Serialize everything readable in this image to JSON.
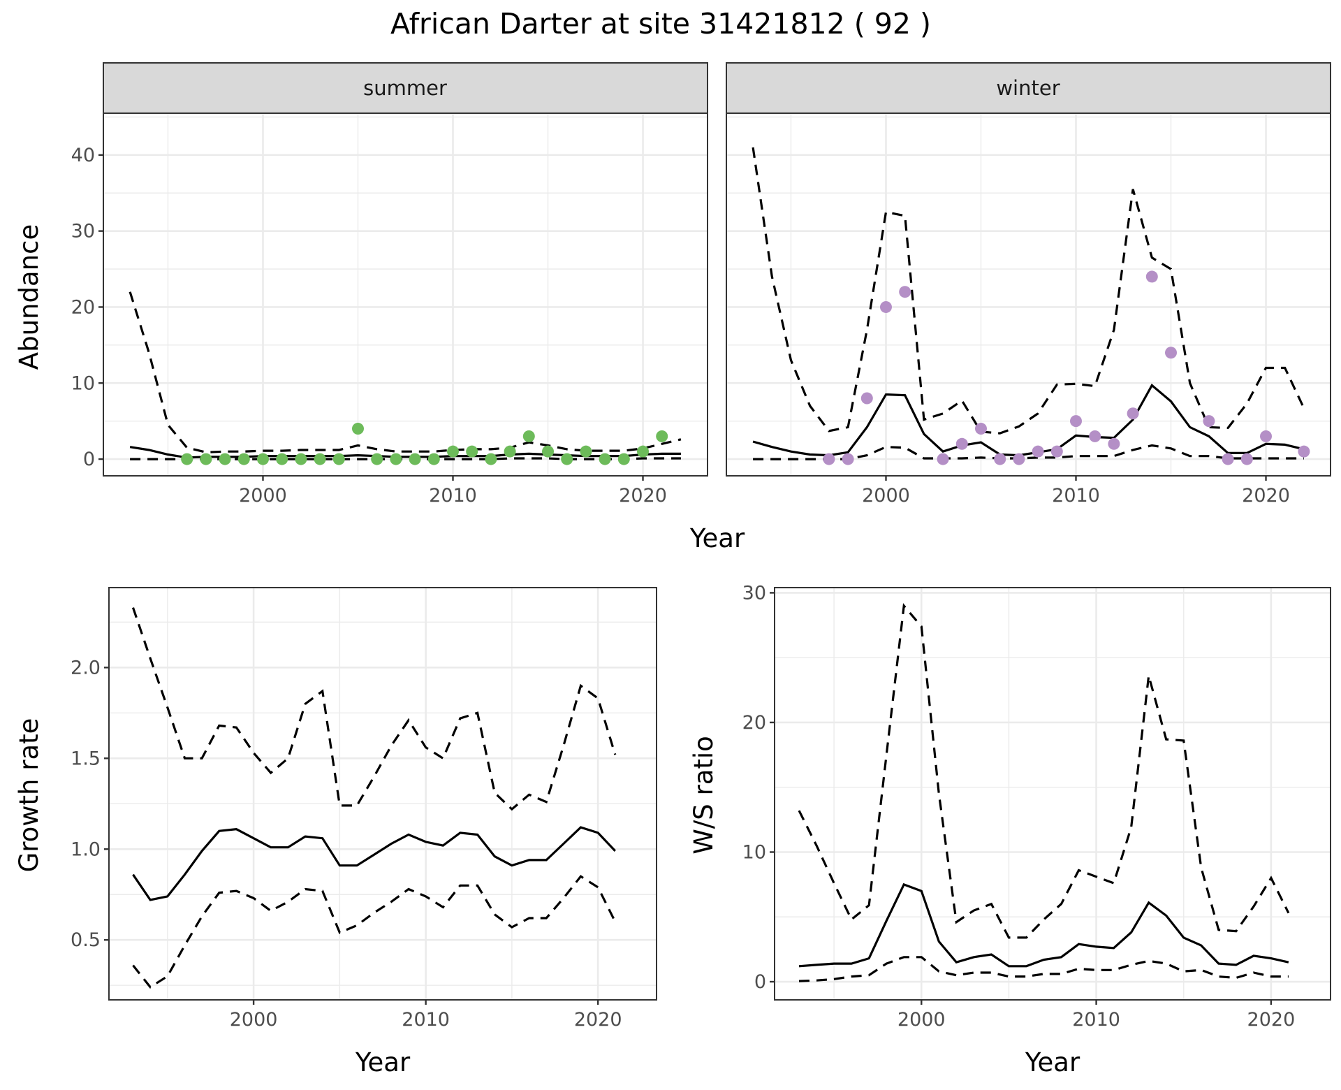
{
  "title": "African Darter at site 31421812 ( 92 )",
  "colors": {
    "summer_points": "#6dbb5a",
    "winter_points": "#b48fc6",
    "lines": "#000000",
    "strip_fill": "#d9d9d9",
    "grid": "#ebebeb",
    "panel_border": "#333333"
  },
  "chart_data": [
    {
      "type": "line",
      "facet": "summer",
      "strip_label": "summer",
      "xlabel": "Year",
      "ylabel": "Abundance",
      "xlim": [
        1991.6,
        2023.4
      ],
      "ylim": [
        -2.2,
        45.5
      ],
      "xticks": [
        2000,
        2010,
        2020
      ],
      "xtick_labels": [
        "2000",
        "2010",
        "2020"
      ],
      "yticks": [
        0,
        10,
        20,
        30,
        40
      ],
      "ytick_labels": [
        "0",
        "10",
        "20",
        "30",
        "40"
      ],
      "grid": true,
      "x": [
        1993,
        1994,
        1995,
        1996,
        1997,
        1998,
        1999,
        2000,
        2001,
        2002,
        2003,
        2004,
        2005,
        2006,
        2007,
        2008,
        2009,
        2010,
        2011,
        2012,
        2013,
        2014,
        2015,
        2016,
        2017,
        2018,
        2019,
        2020,
        2021,
        2022
      ],
      "series": [
        {
          "name": "median",
          "style": "solid",
          "values": [
            1.6,
            1.2,
            0.6,
            0.2,
            0.3,
            0.3,
            0.3,
            0.4,
            0.4,
            0.4,
            0.4,
            0.4,
            0.5,
            0.4,
            0.3,
            0.3,
            0.3,
            0.4,
            0.4,
            0.4,
            0.6,
            0.7,
            0.6,
            0.5,
            0.4,
            0.4,
            0.4,
            0.6,
            0.7,
            0.7
          ]
        },
        {
          "name": "upper",
          "style": "dashed",
          "values": [
            22,
            14,
            4.5,
            1.5,
            0.9,
            1.0,
            1.0,
            1.1,
            1.1,
            1.2,
            1.2,
            1.2,
            1.8,
            1.3,
            1.0,
            1.0,
            1.0,
            1.2,
            1.3,
            1.3,
            1.5,
            2.2,
            1.8,
            1.3,
            1.1,
            1.1,
            1.1,
            1.4,
            2.0,
            2.6
          ]
        },
        {
          "name": "lower",
          "style": "dashed",
          "values": [
            0,
            0,
            0,
            0,
            0,
            0,
            0,
            0,
            0,
            0,
            0,
            0,
            0,
            0,
            0,
            0,
            0,
            0,
            0,
            0,
            0.1,
            0.1,
            0.1,
            0,
            0,
            0,
            0,
            0.1,
            0.1,
            0.1
          ]
        }
      ],
      "points": {
        "name": "observed",
        "x": [
          1996,
          1997,
          1998,
          1999,
          2000,
          2001,
          2002,
          2003,
          2004,
          2005,
          2006,
          2007,
          2008,
          2009,
          2010,
          2011,
          2012,
          2013,
          2014,
          2015,
          2016,
          2017,
          2018,
          2019,
          2020,
          2021
        ],
        "y": [
          0,
          0,
          0,
          0,
          0,
          0,
          0,
          0,
          0,
          4,
          0,
          0,
          0,
          0,
          1,
          1,
          0,
          1,
          3,
          1,
          0,
          1,
          0,
          0,
          1,
          3
        ]
      }
    },
    {
      "type": "line",
      "facet": "winter",
      "strip_label": "winter",
      "xlabel": "Year",
      "ylabel": "Abundance",
      "xlim": [
        1991.6,
        2023.4
      ],
      "ylim": [
        -2.2,
        45.5
      ],
      "xticks": [
        2000,
        2010,
        2020
      ],
      "xtick_labels": [
        "2000",
        "2010",
        "2020"
      ],
      "yticks": [
        0,
        10,
        20,
        30,
        40
      ],
      "grid": true,
      "x": [
        1993,
        1994,
        1995,
        1996,
        1997,
        1998,
        1999,
        2000,
        2001,
        2002,
        2003,
        2004,
        2005,
        2006,
        2007,
        2008,
        2009,
        2010,
        2011,
        2012,
        2013,
        2014,
        2015,
        2016,
        2017,
        2018,
        2019,
        2020,
        2021,
        2022
      ],
      "series": [
        {
          "name": "median",
          "style": "solid",
          "values": [
            2.3,
            1.6,
            1.0,
            0.6,
            0.5,
            0.9,
            4.2,
            8.5,
            8.4,
            3.3,
            1.0,
            1.8,
            2.2,
            0.6,
            0.5,
            0.9,
            1.3,
            3.1,
            2.9,
            2.8,
            5.2,
            9.7,
            7.6,
            4.2,
            3.0,
            0.8,
            0.8,
            2.0,
            1.9,
            1.3
          ]
        },
        {
          "name": "upper",
          "style": "dashed",
          "values": [
            41,
            24,
            13,
            7,
            3.7,
            4.2,
            17,
            32.5,
            32,
            5.2,
            6.0,
            7.7,
            3.6,
            3.4,
            4.3,
            6.0,
            9.8,
            9.9,
            9.6,
            17,
            35.5,
            26.5,
            25,
            10,
            4.2,
            4.1,
            7.3,
            12,
            12,
            6.7
          ]
        },
        {
          "name": "lower",
          "style": "dashed",
          "values": [
            0,
            0,
            0,
            0,
            0,
            0,
            0.5,
            1.6,
            1.5,
            0.1,
            0.1,
            0.1,
            0.2,
            0.1,
            0.1,
            0.2,
            0.2,
            0.4,
            0.4,
            0.4,
            1.2,
            1.8,
            1.4,
            0.4,
            0.4,
            0.1,
            0.1,
            0.1,
            0.1,
            0.1
          ]
        }
      ],
      "points": {
        "name": "observed",
        "x": [
          1997,
          1998,
          1999,
          2000,
          2001,
          2003,
          2004,
          2005,
          2006,
          2007,
          2008,
          2009,
          2010,
          2011,
          2012,
          2013,
          2014,
          2015,
          2017,
          2018,
          2019,
          2020,
          2022
        ],
        "y": [
          0,
          0,
          8,
          20,
          22,
          0,
          2,
          4,
          0,
          0,
          1,
          1,
          5,
          3,
          2,
          6,
          24,
          14,
          5,
          0,
          0,
          3,
          1
        ]
      }
    },
    {
      "type": "line",
      "facet": "growth",
      "xlabel": "Year",
      "ylabel": "Growth rate",
      "xlim": [
        1991.6,
        2023.4
      ],
      "ylim": [
        0.17,
        2.44
      ],
      "xticks": [
        2000,
        2010,
        2020
      ],
      "xtick_labels": [
        "2000",
        "2010",
        "2020"
      ],
      "yticks": [
        0.5,
        1.0,
        1.5,
        2.0
      ],
      "ytick_labels": [
        "0.5",
        "1.0",
        "1.5",
        "2.0"
      ],
      "grid": true,
      "x": [
        1993,
        1994,
        1995,
        1996,
        1997,
        1998,
        1999,
        2000,
        2001,
        2002,
        2003,
        2004,
        2005,
        2006,
        2007,
        2008,
        2009,
        2010,
        2011,
        2012,
        2013,
        2014,
        2015,
        2016,
        2017,
        2018,
        2019,
        2020,
        2021
      ],
      "series": [
        {
          "name": "median",
          "style": "solid",
          "values": [
            0.86,
            0.72,
            0.74,
            0.86,
            0.99,
            1.1,
            1.11,
            1.06,
            1.01,
            1.01,
            1.07,
            1.06,
            0.91,
            0.91,
            0.97,
            1.03,
            1.08,
            1.04,
            1.02,
            1.09,
            1.08,
            0.96,
            0.91,
            0.94,
            0.94,
            1.03,
            1.12,
            1.09,
            0.99
          ]
        },
        {
          "name": "upper",
          "style": "dashed",
          "values": [
            2.33,
            2.05,
            1.78,
            1.5,
            1.5,
            1.68,
            1.67,
            1.53,
            1.42,
            1.5,
            1.8,
            1.87,
            1.24,
            1.24,
            1.4,
            1.57,
            1.71,
            1.56,
            1.5,
            1.72,
            1.75,
            1.31,
            1.22,
            1.3,
            1.26,
            1.57,
            1.9,
            1.83,
            1.52
          ]
        },
        {
          "name": "lower",
          "style": "dashed",
          "values": [
            0.36,
            0.24,
            0.3,
            0.47,
            0.63,
            0.76,
            0.77,
            0.73,
            0.66,
            0.71,
            0.78,
            0.77,
            0.54,
            0.58,
            0.65,
            0.71,
            0.78,
            0.74,
            0.68,
            0.8,
            0.8,
            0.64,
            0.57,
            0.62,
            0.62,
            0.73,
            0.85,
            0.79,
            0.6
          ]
        }
      ]
    },
    {
      "type": "line",
      "facet": "ws_ratio",
      "xlabel": "Year",
      "ylabel": "W/S ratio",
      "xlim": [
        1991.6,
        2023.4
      ],
      "ylim": [
        -1.4,
        30.4
      ],
      "xticks": [
        2000,
        2010,
        2020
      ],
      "xtick_labels": [
        "2000",
        "2010",
        "2020"
      ],
      "yticks": [
        0,
        10,
        20,
        30
      ],
      "ytick_labels": [
        "0",
        "10",
        "20",
        "30"
      ],
      "grid": true,
      "x": [
        1993,
        1994,
        1995,
        1996,
        1997,
        1998,
        1999,
        2000,
        2001,
        2002,
        2003,
        2004,
        2005,
        2006,
        2007,
        2008,
        2009,
        2010,
        2011,
        2012,
        2013,
        2014,
        2015,
        2016,
        2017,
        2018,
        2019,
        2020,
        2021
      ],
      "series": [
        {
          "name": "median",
          "style": "solid",
          "values": [
            1.2,
            1.3,
            1.4,
            1.4,
            1.8,
            4.7,
            7.5,
            7.0,
            3.1,
            1.5,
            1.9,
            2.1,
            1.2,
            1.2,
            1.7,
            1.9,
            2.9,
            2.7,
            2.6,
            3.8,
            6.1,
            5.1,
            3.4,
            2.8,
            1.4,
            1.3,
            2.0,
            1.8,
            1.5
          ]
        },
        {
          "name": "upper",
          "style": "dashed",
          "values": [
            13.2,
            10.5,
            7.6,
            4.8,
            5.9,
            17.5,
            29.0,
            27.4,
            14.5,
            4.6,
            5.5,
            6.0,
            3.4,
            3.4,
            4.8,
            6.0,
            8.6,
            8.1,
            7.6,
            11.9,
            23.6,
            18.7,
            18.6,
            8.8,
            4.0,
            3.9,
            5.8,
            8.0,
            5.3
          ]
        },
        {
          "name": "lower",
          "style": "dashed",
          "values": [
            0.05,
            0.1,
            0.2,
            0.4,
            0.5,
            1.4,
            1.9,
            1.9,
            0.8,
            0.5,
            0.7,
            0.7,
            0.4,
            0.4,
            0.6,
            0.6,
            1.0,
            0.9,
            0.9,
            1.3,
            1.6,
            1.4,
            0.8,
            0.9,
            0.4,
            0.3,
            0.7,
            0.4,
            0.4
          ]
        }
      ]
    }
  ]
}
